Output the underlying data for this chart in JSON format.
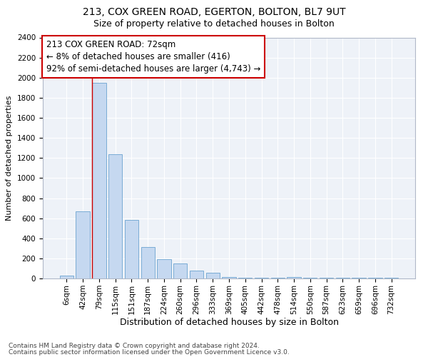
{
  "title1": "213, COX GREEN ROAD, EGERTON, BOLTON, BL7 9UT",
  "title2": "Size of property relative to detached houses in Bolton",
  "xlabel": "Distribution of detached houses by size in Bolton",
  "ylabel": "Number of detached properties",
  "categories": [
    "6sqm",
    "42sqm",
    "79sqm",
    "115sqm",
    "151sqm",
    "187sqm",
    "224sqm",
    "260sqm",
    "296sqm",
    "333sqm",
    "369sqm",
    "405sqm",
    "442sqm",
    "478sqm",
    "514sqm",
    "550sqm",
    "587sqm",
    "623sqm",
    "659sqm",
    "696sqm",
    "732sqm"
  ],
  "values": [
    25,
    670,
    1950,
    1240,
    580,
    310,
    195,
    150,
    80,
    60,
    15,
    10,
    5,
    5,
    15,
    5,
    5,
    5,
    5,
    5,
    10
  ],
  "bar_color": "#c5d8f0",
  "bar_edge_color": "#6ba3d0",
  "vline_x_idx": 2,
  "annotation_text": "213 COX GREEN ROAD: 72sqm\n← 8% of detached houses are smaller (416)\n92% of semi-detached houses are larger (4,743) →",
  "annotation_box_color": "#ffffff",
  "annotation_box_edge": "#cc0000",
  "vline_color": "#cc0000",
  "footer1": "Contains HM Land Registry data © Crown copyright and database right 2024.",
  "footer2": "Contains public sector information licensed under the Open Government Licence v3.0.",
  "ylim": [
    0,
    2400
  ],
  "yticks": [
    0,
    200,
    400,
    600,
    800,
    1000,
    1200,
    1400,
    1600,
    1800,
    2000,
    2200,
    2400
  ],
  "bg_color": "#eef2f8",
  "fig_bg": "#ffffff",
  "title1_fontsize": 10,
  "title2_fontsize": 9,
  "xlabel_fontsize": 9,
  "ylabel_fontsize": 8,
  "tick_fontsize": 7.5,
  "annotation_fontsize": 8.5,
  "footer_fontsize": 6.5
}
